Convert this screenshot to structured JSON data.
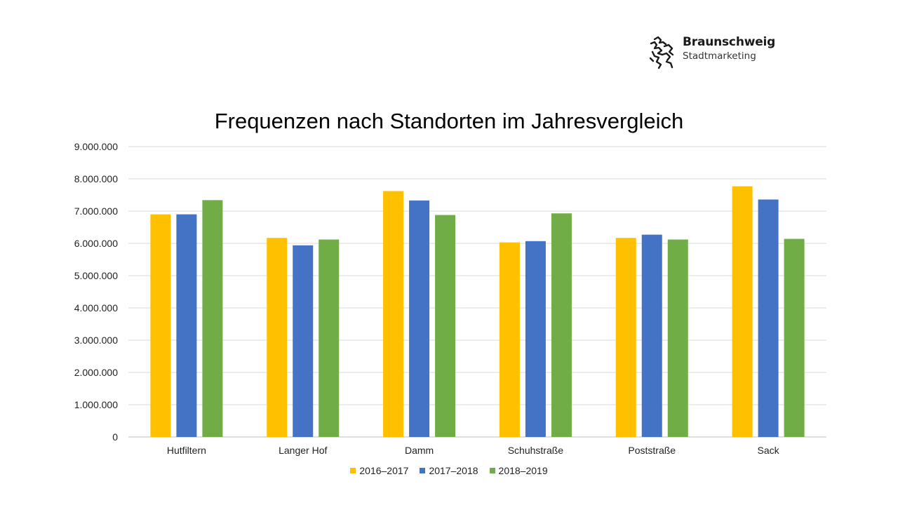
{
  "logo": {
    "name": "Braunschweig",
    "sub": "Stadtmarketing"
  },
  "chart_data": {
    "type": "bar",
    "title": "Frequenzen nach Standorten im Jahresvergleich",
    "xlabel": "",
    "ylabel": "",
    "ylim": [
      0,
      9000000
    ],
    "yticks": [
      0,
      1000000,
      2000000,
      3000000,
      4000000,
      5000000,
      6000000,
      7000000,
      8000000,
      9000000
    ],
    "ytick_labels": [
      "0",
      "1.000.000",
      "2.000.000",
      "3.000.000",
      "4.000.000",
      "5.000.000",
      "6.000.000",
      "7.000.000",
      "8.000.000",
      "9.000.000"
    ],
    "categories": [
      "Hutfiltern",
      "Langer Hof",
      "Damm",
      "Schuhstraße",
      "Poststraße",
      "Sack"
    ],
    "series": [
      {
        "name": "2016–2017",
        "color": "#FFC000",
        "values": [
          6900000,
          6170000,
          7620000,
          6030000,
          6170000,
          7770000
        ]
      },
      {
        "name": "2017–2018",
        "color": "#4472C4",
        "values": [
          6900000,
          5940000,
          7330000,
          6070000,
          6270000,
          7360000
        ]
      },
      {
        "name": "2018–2019",
        "color": "#70AD47",
        "values": [
          7340000,
          6120000,
          6880000,
          6930000,
          6120000,
          6140000
        ]
      }
    ],
    "grid": true,
    "legend": "bottom"
  }
}
